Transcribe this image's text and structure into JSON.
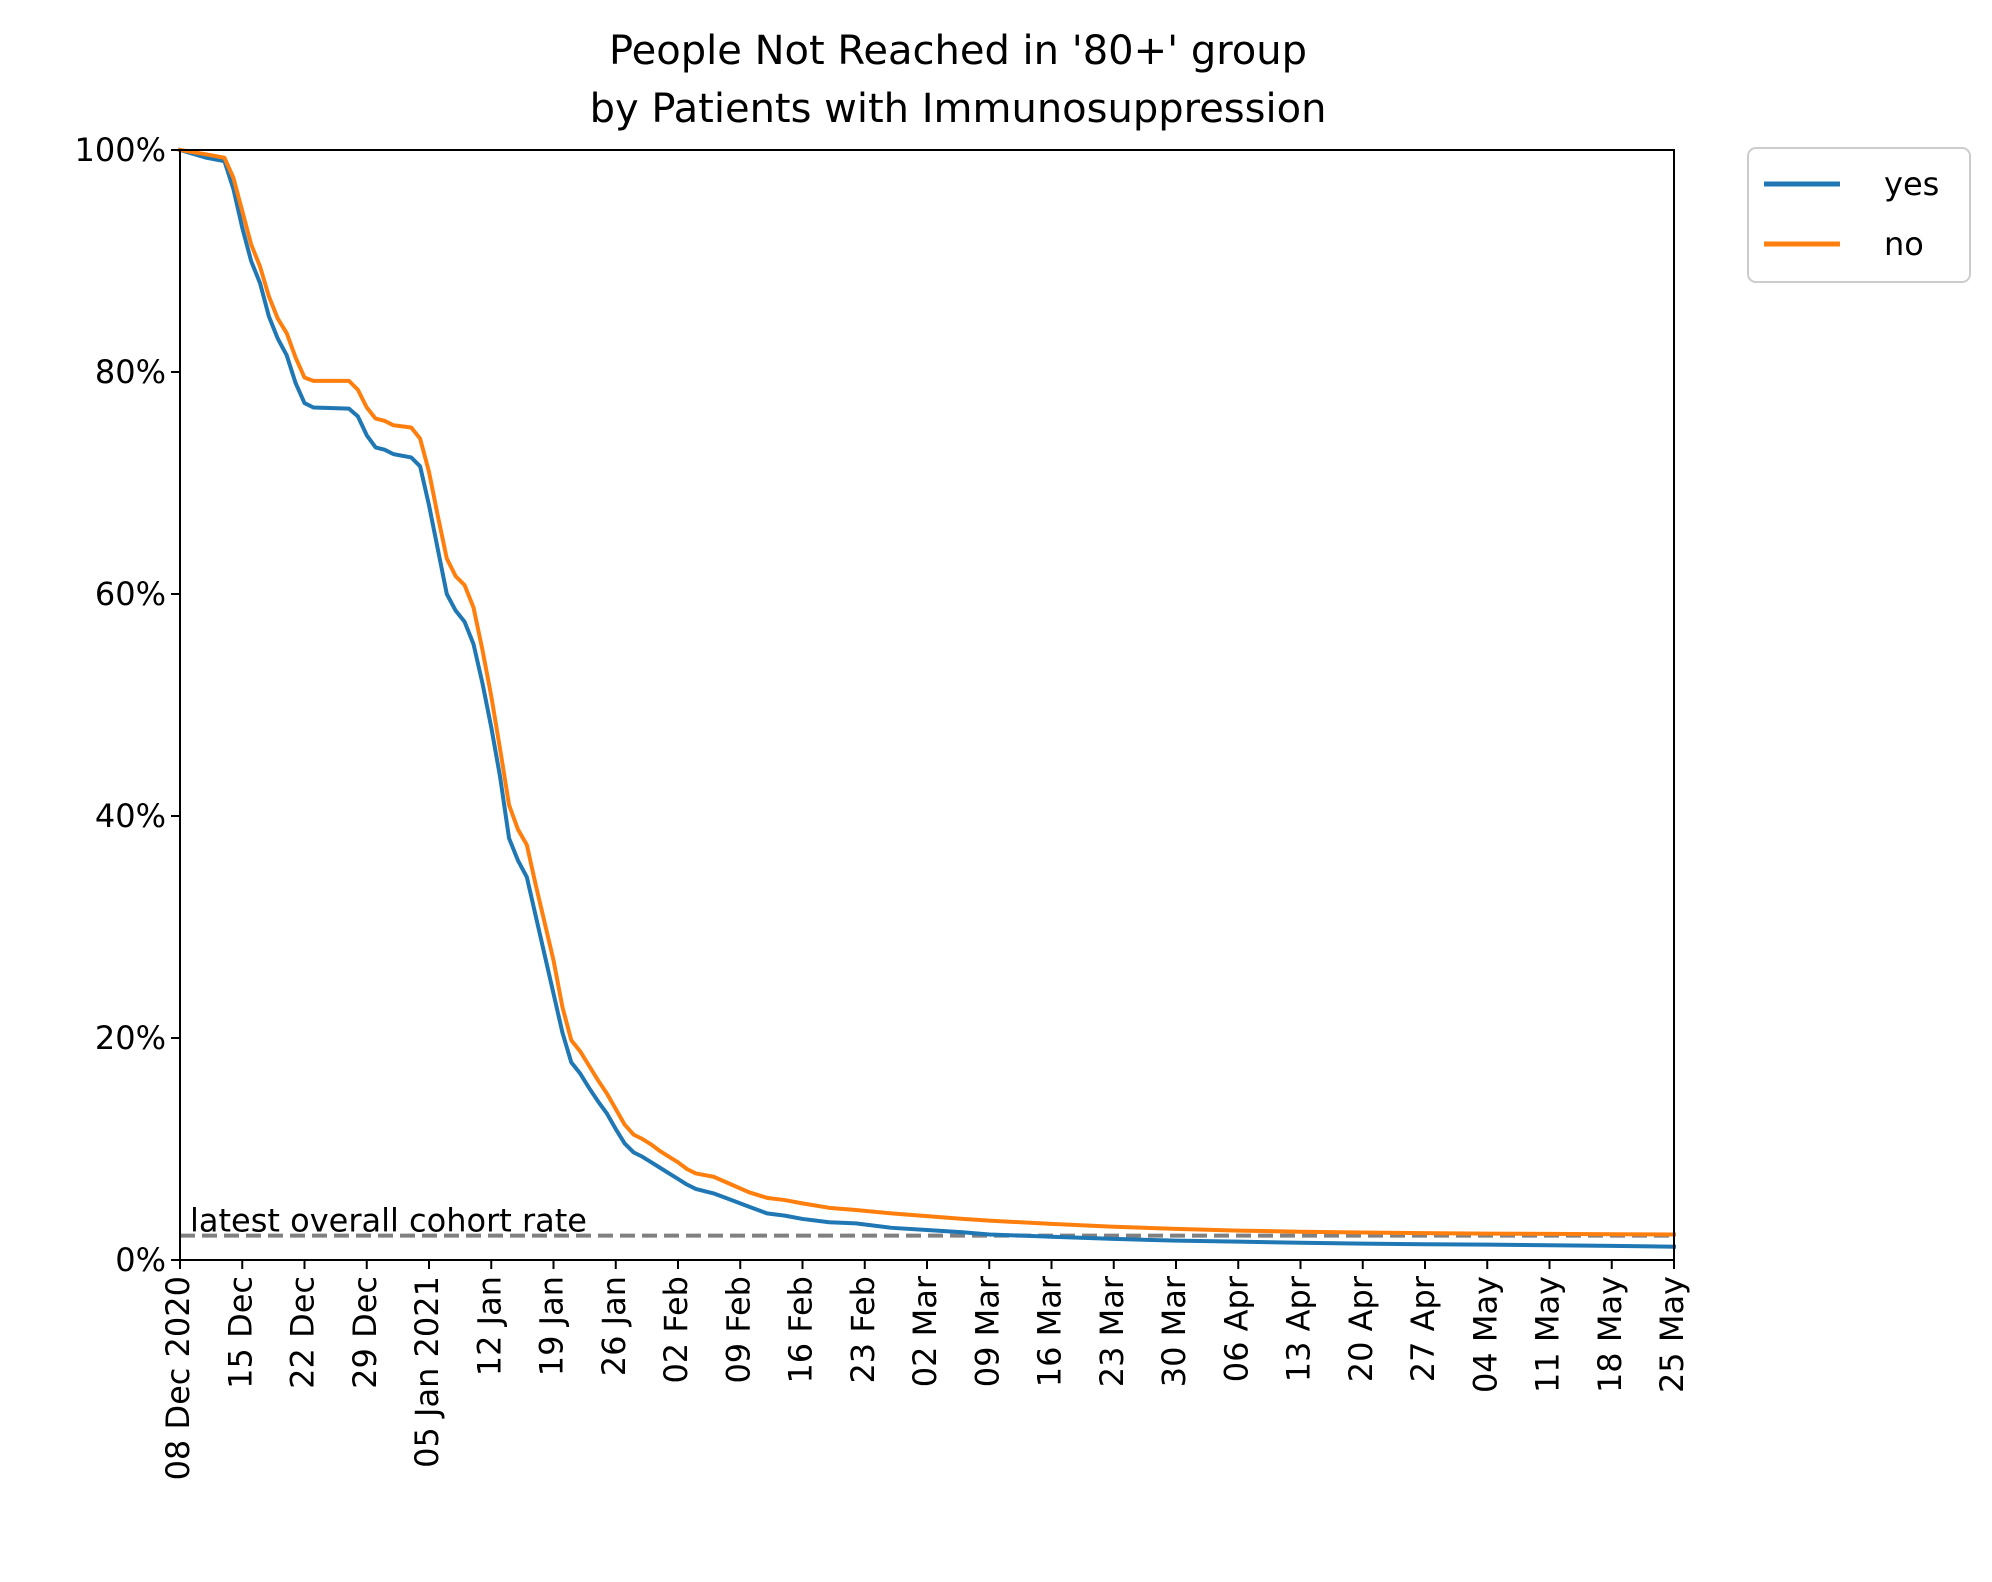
{
  "chart_data": {
    "type": "line",
    "title": "People Not Reached in '80+' group",
    "subtitle": "by Patients with Immunosuppression",
    "xlabel": "",
    "ylabel": "",
    "ylim": [
      0,
      100
    ],
    "xlim": [
      "2020-12-08",
      "2021-05-25"
    ],
    "yticks": [
      0,
      20,
      40,
      60,
      80,
      100
    ],
    "ytick_labels": [
      "0%",
      "20%",
      "40%",
      "60%",
      "80%",
      "100%"
    ],
    "xticks": [
      "2020-12-08",
      "2020-12-15",
      "2020-12-22",
      "2020-12-29",
      "2021-01-05",
      "2021-01-12",
      "2021-01-19",
      "2021-01-26",
      "2021-02-02",
      "2021-02-09",
      "2021-02-16",
      "2021-02-23",
      "2021-03-02",
      "2021-03-09",
      "2021-03-16",
      "2021-03-23",
      "2021-03-30",
      "2021-04-06",
      "2021-04-13",
      "2021-04-20",
      "2021-04-27",
      "2021-05-04",
      "2021-05-11",
      "2021-05-18",
      "2021-05-25"
    ],
    "xtick_labels": [
      "08 Dec 2020",
      "15 Dec",
      "22 Dec",
      "29 Dec",
      "05 Jan 2021",
      "12 Jan",
      "19 Jan",
      "26 Jan",
      "02 Feb",
      "09 Feb",
      "16 Feb",
      "23 Feb",
      "02 Mar",
      "09 Mar",
      "16 Mar",
      "23 Mar",
      "30 Mar",
      "06 Apr",
      "13 Apr",
      "20 Apr",
      "27 Apr",
      "04 May",
      "11 May",
      "18 May",
      "25 May"
    ],
    "legend_position": "outside top-right",
    "grid": false,
    "series": [
      {
        "name": "yes",
        "color": "#1f77b4",
        "points": [
          [
            "2020-12-08",
            100
          ],
          [
            "2020-12-11",
            99.3
          ],
          [
            "2020-12-13",
            99.0
          ],
          [
            "2020-12-14",
            96.5
          ],
          [
            "2020-12-15",
            93.0
          ],
          [
            "2020-12-16",
            90.0
          ],
          [
            "2020-12-17",
            88.0
          ],
          [
            "2020-12-18",
            85.0
          ],
          [
            "2020-12-19",
            83.0
          ],
          [
            "2020-12-20",
            81.5
          ],
          [
            "2020-12-21",
            79.0
          ],
          [
            "2020-12-22",
            77.2
          ],
          [
            "2020-12-23",
            76.8
          ],
          [
            "2020-12-27",
            76.7
          ],
          [
            "2020-12-28",
            76.0
          ],
          [
            "2020-12-29",
            74.3
          ],
          [
            "2020-12-30",
            73.2
          ],
          [
            "2020-12-31",
            73.0
          ],
          [
            "2021-01-01",
            72.6
          ],
          [
            "2021-01-03",
            72.3
          ],
          [
            "2021-01-04",
            71.5
          ],
          [
            "2021-01-05",
            68.0
          ],
          [
            "2021-01-06",
            64.0
          ],
          [
            "2021-01-07",
            60.0
          ],
          [
            "2021-01-08",
            58.5
          ],
          [
            "2021-01-09",
            57.5
          ],
          [
            "2021-01-10",
            55.5
          ],
          [
            "2021-01-11",
            52.0
          ],
          [
            "2021-01-12",
            48.0
          ],
          [
            "2021-01-13",
            43.5
          ],
          [
            "2021-01-14",
            38.0
          ],
          [
            "2021-01-15",
            36.0
          ],
          [
            "2021-01-16",
            34.5
          ],
          [
            "2021-01-17",
            31.0
          ],
          [
            "2021-01-18",
            27.5
          ],
          [
            "2021-01-19",
            24.0
          ],
          [
            "2021-01-20",
            20.5
          ],
          [
            "2021-01-21",
            17.8
          ],
          [
            "2021-01-22",
            16.8
          ],
          [
            "2021-01-23",
            15.5
          ],
          [
            "2021-01-24",
            14.3
          ],
          [
            "2021-01-25",
            13.2
          ],
          [
            "2021-01-26",
            11.8
          ],
          [
            "2021-01-27",
            10.5
          ],
          [
            "2021-01-28",
            9.7
          ],
          [
            "2021-01-29",
            9.3
          ],
          [
            "2021-01-30",
            8.8
          ],
          [
            "2021-01-31",
            8.3
          ],
          [
            "2021-02-01",
            7.8
          ],
          [
            "2021-02-02",
            7.3
          ],
          [
            "2021-02-03",
            6.8
          ],
          [
            "2021-02-04",
            6.4
          ],
          [
            "2021-02-06",
            6.0
          ],
          [
            "2021-02-08",
            5.4
          ],
          [
            "2021-02-10",
            4.8
          ],
          [
            "2021-02-12",
            4.2
          ],
          [
            "2021-02-14",
            4.0
          ],
          [
            "2021-02-16",
            3.7
          ],
          [
            "2021-02-19",
            3.4
          ],
          [
            "2021-02-22",
            3.3
          ],
          [
            "2021-02-26",
            2.9
          ],
          [
            "2021-03-02",
            2.7
          ],
          [
            "2021-03-06",
            2.5
          ],
          [
            "2021-03-09",
            2.3
          ],
          [
            "2021-03-16",
            2.1
          ],
          [
            "2021-03-23",
            1.9
          ],
          [
            "2021-03-30",
            1.75
          ],
          [
            "2021-04-06",
            1.65
          ],
          [
            "2021-04-13",
            1.55
          ],
          [
            "2021-04-20",
            1.48
          ],
          [
            "2021-04-27",
            1.42
          ],
          [
            "2021-05-04",
            1.38
          ],
          [
            "2021-05-11",
            1.33
          ],
          [
            "2021-05-18",
            1.27
          ],
          [
            "2021-05-25",
            1.2
          ]
        ]
      },
      {
        "name": "no",
        "color": "#ff7f0e",
        "points": [
          [
            "2020-12-08",
            100
          ],
          [
            "2020-12-11",
            99.6
          ],
          [
            "2020-12-13",
            99.3
          ],
          [
            "2020-12-14",
            97.5
          ],
          [
            "2020-12-15",
            94.5
          ],
          [
            "2020-12-16",
            91.5
          ],
          [
            "2020-12-17",
            89.5
          ],
          [
            "2020-12-18",
            86.8
          ],
          [
            "2020-12-19",
            84.8
          ],
          [
            "2020-12-20",
            83.5
          ],
          [
            "2020-12-21",
            81.3
          ],
          [
            "2020-12-22",
            79.5
          ],
          [
            "2020-12-23",
            79.2
          ],
          [
            "2020-12-27",
            79.2
          ],
          [
            "2020-12-28",
            78.4
          ],
          [
            "2020-12-29",
            76.8
          ],
          [
            "2020-12-30",
            75.8
          ],
          [
            "2020-12-31",
            75.6
          ],
          [
            "2021-01-01",
            75.2
          ],
          [
            "2021-01-03",
            75.0
          ],
          [
            "2021-01-04",
            74.0
          ],
          [
            "2021-01-05",
            71.0
          ],
          [
            "2021-01-06",
            67.0
          ],
          [
            "2021-01-07",
            63.2
          ],
          [
            "2021-01-08",
            61.6
          ],
          [
            "2021-01-09",
            60.8
          ],
          [
            "2021-01-10",
            58.8
          ],
          [
            "2021-01-11",
            55.0
          ],
          [
            "2021-01-12",
            50.8
          ],
          [
            "2021-01-13",
            46.0
          ],
          [
            "2021-01-14",
            41.0
          ],
          [
            "2021-01-15",
            38.8
          ],
          [
            "2021-01-16",
            37.4
          ],
          [
            "2021-01-17",
            33.8
          ],
          [
            "2021-01-18",
            30.4
          ],
          [
            "2021-01-19",
            27.0
          ],
          [
            "2021-01-20",
            22.8
          ],
          [
            "2021-01-21",
            19.8
          ],
          [
            "2021-01-22",
            18.8
          ],
          [
            "2021-01-23",
            17.5
          ],
          [
            "2021-01-24",
            16.2
          ],
          [
            "2021-01-25",
            15.0
          ],
          [
            "2021-01-26",
            13.6
          ],
          [
            "2021-01-27",
            12.2
          ],
          [
            "2021-01-28",
            11.3
          ],
          [
            "2021-01-29",
            10.9
          ],
          [
            "2021-01-30",
            10.4
          ],
          [
            "2021-01-31",
            9.8
          ],
          [
            "2021-02-01",
            9.3
          ],
          [
            "2021-02-02",
            8.8
          ],
          [
            "2021-02-03",
            8.2
          ],
          [
            "2021-02-04",
            7.8
          ],
          [
            "2021-02-06",
            7.5
          ],
          [
            "2021-02-08",
            6.8
          ],
          [
            "2021-02-10",
            6.1
          ],
          [
            "2021-02-12",
            5.6
          ],
          [
            "2021-02-14",
            5.4
          ],
          [
            "2021-02-16",
            5.1
          ],
          [
            "2021-02-19",
            4.7
          ],
          [
            "2021-02-22",
            4.5
          ],
          [
            "2021-02-26",
            4.2
          ],
          [
            "2021-03-02",
            3.95
          ],
          [
            "2021-03-06",
            3.7
          ],
          [
            "2021-03-09",
            3.55
          ],
          [
            "2021-03-16",
            3.25
          ],
          [
            "2021-03-23",
            3.0
          ],
          [
            "2021-03-30",
            2.8
          ],
          [
            "2021-04-06",
            2.65
          ],
          [
            "2021-04-13",
            2.55
          ],
          [
            "2021-04-20",
            2.48
          ],
          [
            "2021-04-27",
            2.42
          ],
          [
            "2021-05-04",
            2.38
          ],
          [
            "2021-05-11",
            2.35
          ],
          [
            "2021-05-18",
            2.32
          ],
          [
            "2021-05-25",
            2.3
          ]
        ]
      }
    ],
    "reference_line": {
      "label": "latest overall cohort rate",
      "value": 2.2,
      "color": "#808080",
      "style": "dashed"
    }
  }
}
